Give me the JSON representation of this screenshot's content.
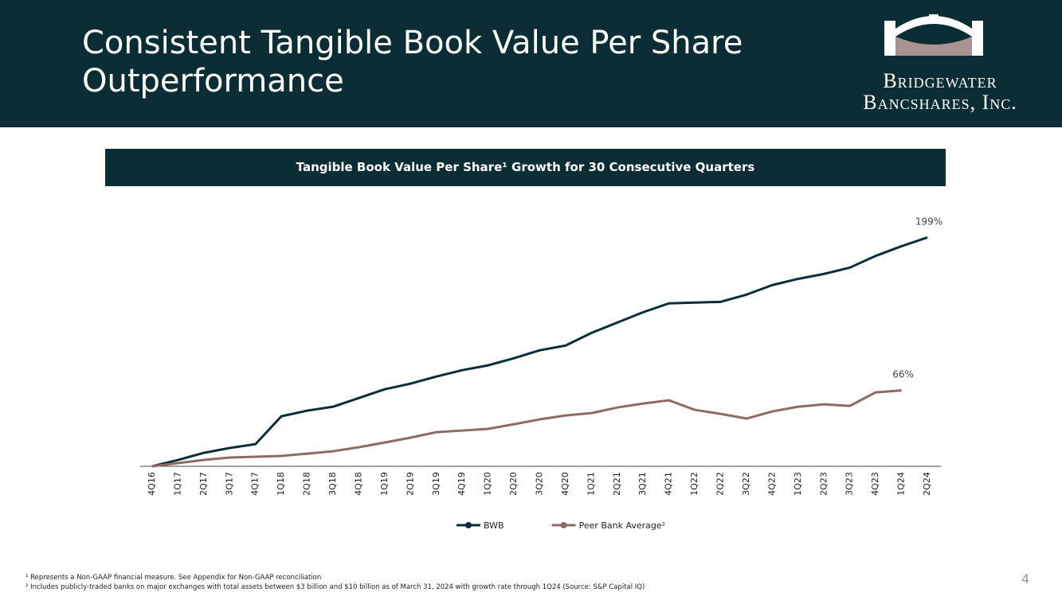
{
  "header": {
    "title": "Consistent Tangible Book Value Per Share Outperformance",
    "logo_line1": "Bridgewater",
    "logo_line2": "Bancshares, Inc."
  },
  "chart_data": {
    "type": "line",
    "title": "Tangible Book Value Per Share¹ Growth for 30 Consecutive Quarters",
    "categories": [
      "4Q16",
      "1Q17",
      "2Q17",
      "3Q17",
      "4Q17",
      "1Q18",
      "2Q18",
      "3Q18",
      "4Q18",
      "1Q19",
      "2Q19",
      "3Q19",
      "4Q19",
      "1Q20",
      "2Q20",
      "3Q20",
      "4Q20",
      "1Q21",
      "2Q21",
      "3Q21",
      "4Q21",
      "1Q22",
      "2Q22",
      "3Q22",
      "4Q22",
      "1Q23",
      "2Q23",
      "3Q23",
      "4Q23",
      "1Q24",
      "2Q24"
    ],
    "series": [
      {
        "name": "BWB",
        "color": "#0b2e36",
        "values": [
          0,
          5.5,
          11.7,
          15.9,
          19.3,
          43.5,
          48.4,
          51.8,
          59.4,
          67,
          71.9,
          78.1,
          83.6,
          87.8,
          94,
          100.9,
          105,
          116,
          125,
          134,
          141.7,
          142.4,
          143,
          149.3,
          157.6,
          163,
          167.3,
          172.8,
          183,
          191.4,
          199
        ],
        "value_labels": [
          null,
          null,
          null,
          null,
          null,
          null,
          null,
          null,
          null,
          null,
          null,
          null,
          null,
          null,
          null,
          null,
          null,
          null,
          null,
          null,
          null,
          null,
          null,
          null,
          null,
          null,
          null,
          null,
          null,
          null,
          "199%"
        ]
      },
      {
        "name": "Peer Bank Average²",
        "color": "#8c6b66",
        "values": [
          0,
          2.8,
          5.5,
          7.6,
          8.3,
          9,
          11,
          13.1,
          16.6,
          20.7,
          24.9,
          29.7,
          31.1,
          32.5,
          36.6,
          40.8,
          44.2,
          46.3,
          51.1,
          54.6,
          57.4,
          49.1,
          45.6,
          41.5,
          47.7,
          51.8,
          53.9,
          52.5,
          64.3,
          66,
          null
        ],
        "value_labels": [
          null,
          null,
          null,
          null,
          null,
          null,
          null,
          null,
          null,
          null,
          null,
          null,
          null,
          null,
          null,
          null,
          null,
          null,
          null,
          null,
          null,
          null,
          null,
          null,
          null,
          null,
          null,
          null,
          null,
          "66%",
          null
        ]
      }
    ],
    "ylim": [
      0,
      200
    ],
    "legend": "bottom"
  },
  "footnotes": [
    "¹ Represents a Non-GAAP financial measure. See Appendix for Non-GAAP reconciliation",
    "² Includes publicly-traded banks on major exchanges with total assets between $3 billion and $10 billion as of March 31, 2024 with growth rate through 1Q24 (Source: S&P Capital IQ)"
  ],
  "page_number": "4"
}
